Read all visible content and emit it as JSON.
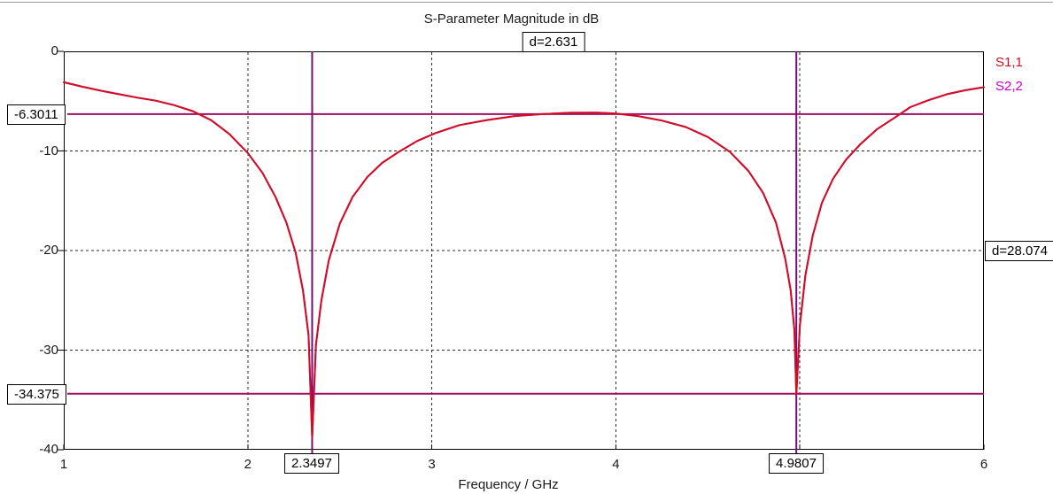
{
  "window": {
    "background_color": "#ffffff",
    "top_border_color": "#9a9a9a"
  },
  "chart": {
    "title": "S-Parameter Magnitude in dB",
    "x_axis_title": "Frequency / GHz",
    "markers": {
      "freq1_label": "2.3497",
      "freq2_label": "4.9807",
      "mag1_label": "-6.3011",
      "mag2_label": "-34.375",
      "delta_freq_label": "d=2.631",
      "delta_mag_label": "d=28.074"
    }
  },
  "chart_data": {
    "type": "line",
    "title": "S-Parameter Magnitude in dB",
    "xlabel": "Frequency / GHz",
    "ylabel": "",
    "xlim": [
      1,
      6
    ],
    "ylim": [
      -40,
      0
    ],
    "xticks": [
      1,
      2,
      3,
      4,
      5,
      6
    ],
    "xtick_labels_visible": [
      "1",
      "2",
      "3",
      "4",
      "6"
    ],
    "xtick_label_values": [
      1,
      2,
      3,
      4,
      6
    ],
    "yticks": [
      0,
      -10,
      -20,
      -30,
      -40
    ],
    "grid": true,
    "grid_style": "dashed",
    "grid_color": "#2a2a2a",
    "legend_position": "top-right-outside",
    "series": [
      {
        "name": "S1,1",
        "color": "#d01020",
        "points": [
          [
            1.0,
            -3.1
          ],
          [
            1.1,
            -3.55
          ],
          [
            1.2,
            -3.95
          ],
          [
            1.3,
            -4.3
          ],
          [
            1.4,
            -4.65
          ],
          [
            1.5,
            -4.95
          ],
          [
            1.6,
            -5.4
          ],
          [
            1.7,
            -6.0
          ],
          [
            1.8,
            -6.9
          ],
          [
            1.9,
            -8.3
          ],
          [
            2.0,
            -10.2
          ],
          [
            2.08,
            -12.2
          ],
          [
            2.15,
            -14.6
          ],
          [
            2.21,
            -17.2
          ],
          [
            2.26,
            -20.2
          ],
          [
            2.3,
            -24.0
          ],
          [
            2.33,
            -28.5
          ],
          [
            2.3497,
            -38.8
          ],
          [
            2.37,
            -29.5
          ],
          [
            2.4,
            -25.0
          ],
          [
            2.44,
            -21.0
          ],
          [
            2.5,
            -17.3
          ],
          [
            2.57,
            -14.6
          ],
          [
            2.65,
            -12.6
          ],
          [
            2.73,
            -11.2
          ],
          [
            2.82,
            -10.1
          ],
          [
            2.92,
            -9.0
          ],
          [
            3.02,
            -8.2
          ],
          [
            3.15,
            -7.4
          ],
          [
            3.3,
            -6.9
          ],
          [
            3.45,
            -6.5
          ],
          [
            3.6,
            -6.3
          ],
          [
            3.75,
            -6.17
          ],
          [
            3.9,
            -6.15
          ],
          [
            4.0,
            -6.25
          ],
          [
            4.12,
            -6.5
          ],
          [
            4.25,
            -6.95
          ],
          [
            4.38,
            -7.6
          ],
          [
            4.5,
            -8.6
          ],
          [
            4.62,
            -10.1
          ],
          [
            4.72,
            -12.0
          ],
          [
            4.8,
            -14.2
          ],
          [
            4.87,
            -17.2
          ],
          [
            4.92,
            -20.8
          ],
          [
            4.95,
            -24.0
          ],
          [
            4.97,
            -28.0
          ],
          [
            4.9807,
            -34.5
          ],
          [
            5.0,
            -27.5
          ],
          [
            5.03,
            -22.5
          ],
          [
            5.07,
            -18.5
          ],
          [
            5.12,
            -15.2
          ],
          [
            5.18,
            -12.8
          ],
          [
            5.25,
            -10.9
          ],
          [
            5.33,
            -9.3
          ],
          [
            5.42,
            -7.8
          ],
          [
            5.52,
            -6.6
          ],
          [
            5.6,
            -5.6
          ],
          [
            5.7,
            -4.9
          ],
          [
            5.8,
            -4.3
          ],
          [
            5.9,
            -3.9
          ],
          [
            6.0,
            -3.6
          ]
        ]
      },
      {
        "name": "S2,2",
        "color": "#cc00cc",
        "overlaps_series": "S1,1",
        "points": []
      }
    ],
    "markers": {
      "vertical_lines_ghz": [
        2.3497,
        4.9807
      ],
      "vertical_line_color": "#760d76",
      "horizontal_lines_db": [
        -6.3011,
        -34.375
      ],
      "horizontal_line_color": "#9c1162",
      "delta_frequency_ghz": 2.631,
      "delta_magnitude_db": 28.074
    }
  }
}
